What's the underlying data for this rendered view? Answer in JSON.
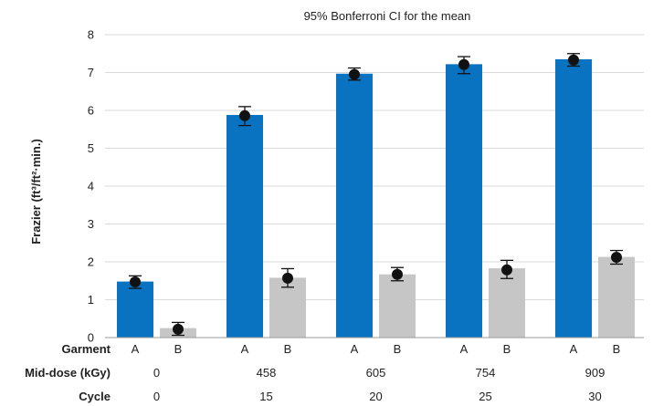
{
  "chart_data": {
    "type": "bar",
    "title": "95% Bonferroni CI for the mean",
    "ylabel": "Frazier (ft³/ft²·min.)",
    "ylim": [
      0,
      8
    ],
    "yticks": [
      0,
      1,
      2,
      3,
      4,
      5,
      6,
      7,
      8
    ],
    "grid": true,
    "groups": [
      {
        "mid_dose": "0",
        "cycle": "0"
      },
      {
        "mid_dose": "458",
        "cycle": "15"
      },
      {
        "mid_dose": "605",
        "cycle": "20"
      },
      {
        "mid_dose": "754",
        "cycle": "25"
      },
      {
        "mid_dose": "909",
        "cycle": "30"
      }
    ],
    "row_labels": {
      "garment": "Garment",
      "mid_dose": "Mid-dose (kGy)",
      "cycle": "Cycle"
    },
    "series": [
      {
        "garment": "A",
        "color": "#0a73c1",
        "values": [
          1.48,
          5.88,
          6.97,
          7.22,
          7.35
        ],
        "means": [
          1.47,
          5.86,
          6.95,
          7.21,
          7.33
        ],
        "ci_low": [
          1.3,
          5.6,
          6.8,
          6.97,
          7.17
        ],
        "ci_high": [
          1.63,
          6.1,
          7.12,
          7.42,
          7.5
        ]
      },
      {
        "garment": "B",
        "color": "#c6c6c6",
        "values": [
          0.25,
          1.58,
          1.67,
          1.83,
          2.13
        ],
        "means": [
          0.22,
          1.57,
          1.67,
          1.79,
          2.12
        ],
        "ci_low": [
          0.06,
          1.33,
          1.5,
          1.56,
          1.94
        ],
        "ci_high": [
          0.4,
          1.82,
          1.85,
          2.04,
          2.3
        ]
      }
    ]
  }
}
